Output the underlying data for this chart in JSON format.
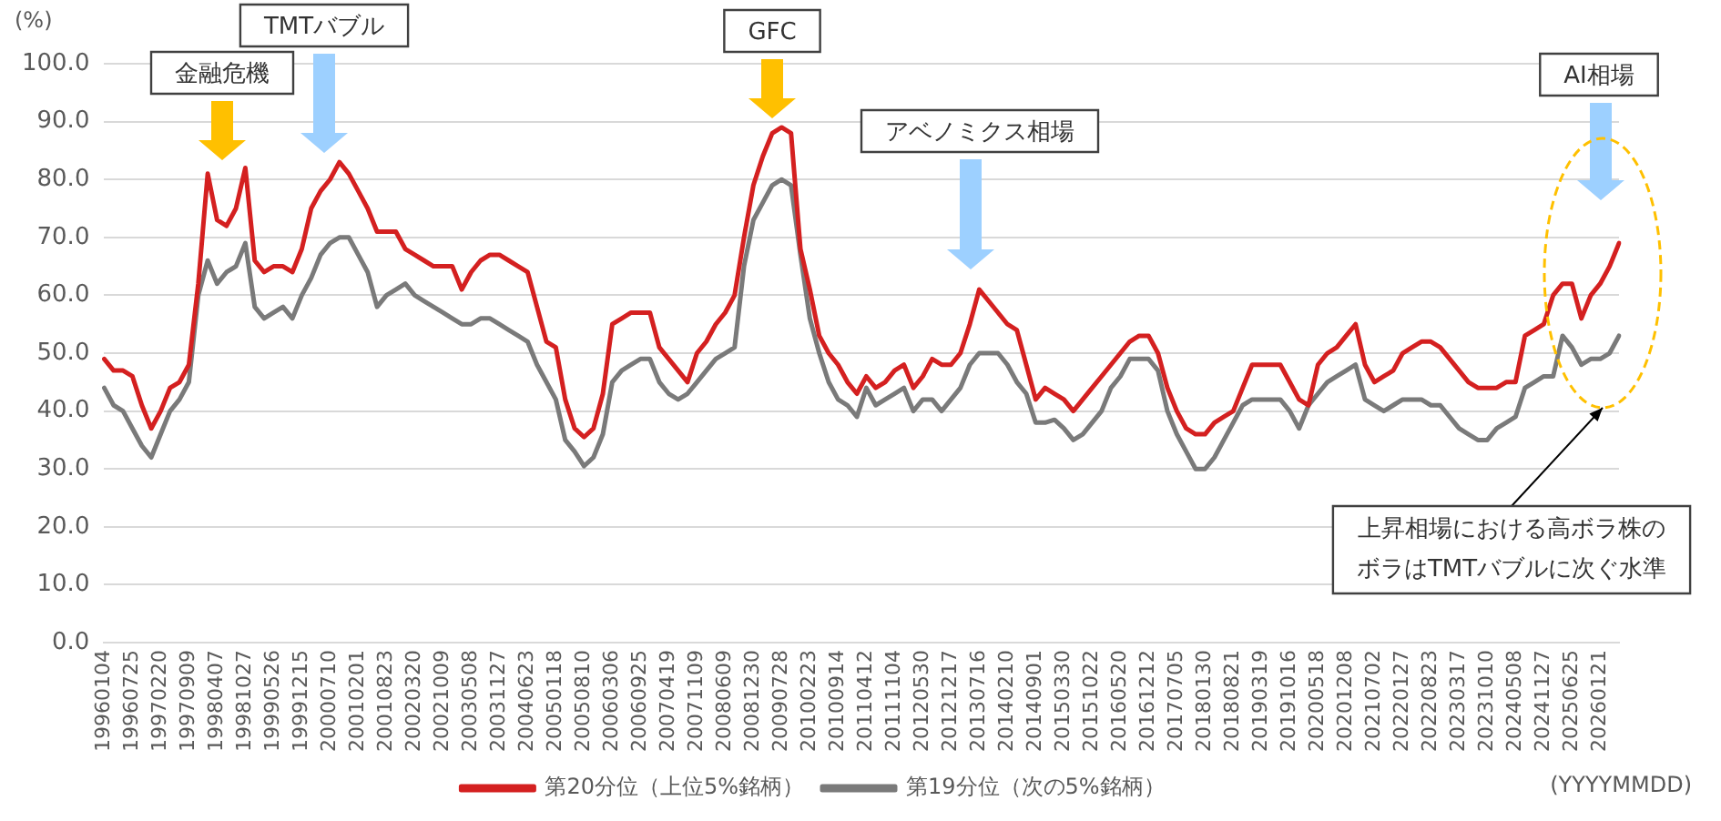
{
  "chart_data": {
    "type": "line",
    "xlabel": "(YYYYMMDD)",
    "ylabel": "(%)",
    "categories": [
      "19960104",
      null,
      null,
      "19960725",
      null,
      null,
      "19970220",
      null,
      null,
      "19970909",
      null,
      null,
      "19980407",
      null,
      null,
      "19981027",
      null,
      null,
      "19990526",
      null,
      null,
      "19991215",
      null,
      null,
      "20000710",
      null,
      null,
      "20010201",
      null,
      null,
      "20010823",
      null,
      null,
      "20020320",
      null,
      null,
      "20021009",
      null,
      null,
      "20030508",
      null,
      null,
      "20031127",
      null,
      null,
      "20040623",
      null,
      null,
      "20050118",
      null,
      null,
      "20050810",
      null,
      null,
      "20060306",
      null,
      null,
      "20060925",
      null,
      null,
      "20070419",
      null,
      null,
      "20071109",
      null,
      null,
      "20080609",
      null,
      null,
      "20081230",
      null,
      null,
      "20090728",
      null,
      null,
      "20100223",
      null,
      null,
      "20100914",
      null,
      null,
      "20110412",
      null,
      null,
      "20111104",
      null,
      null,
      "20120530",
      null,
      null,
      "20121217",
      null,
      null,
      "20130716",
      null,
      null,
      "20140210",
      null,
      null,
      "20140901",
      null,
      null,
      "20150330",
      null,
      null,
      "20151022",
      null,
      null,
      "20160520",
      null,
      null,
      "20161212",
      null,
      null,
      "20170705",
      null,
      null,
      "20180130",
      null,
      null,
      "20180821",
      null,
      null,
      "20190319",
      null,
      null,
      "20191016",
      null,
      null,
      "20200518",
      null,
      null,
      "20201208",
      null,
      null,
      "20210702",
      null,
      null,
      "20220127",
      null,
      null,
      "20220823",
      null,
      null,
      "20230317",
      null,
      null,
      "20231010",
      null,
      null,
      "20240508",
      null,
      null,
      "20241127",
      null,
      null,
      "20250625",
      null,
      null,
      "20260121",
      null,
      null
    ],
    "series": [
      {
        "name": "第20分位（上位5%銘柄）",
        "color": "#d42020",
        "values": [
          49,
          47,
          47,
          46,
          41,
          37,
          40,
          44,
          45,
          48,
          62,
          81,
          73,
          72,
          75,
          82,
          66,
          64,
          65,
          65,
          64,
          68,
          75,
          78,
          80,
          83,
          81,
          78,
          75,
          71,
          71,
          71,
          68,
          67,
          66,
          65,
          65,
          65,
          61,
          64,
          66,
          67,
          67,
          66,
          65,
          64,
          58,
          52,
          51,
          42,
          37,
          35.5,
          37,
          43,
          55,
          56,
          57,
          57,
          57,
          51,
          49,
          47,
          45,
          50,
          52,
          55,
          57,
          60,
          70,
          79,
          84,
          88,
          89,
          88,
          68,
          61,
          53,
          50,
          48,
          45,
          43,
          46,
          44,
          45,
          47,
          48,
          44,
          46,
          49,
          48,
          48,
          50,
          55,
          61,
          59,
          57,
          55,
          54,
          48,
          42,
          44,
          43,
          42,
          40,
          42,
          44,
          46,
          48,
          50,
          52,
          53,
          53,
          50,
          44,
          40,
          37,
          36,
          36,
          38,
          39,
          40,
          44,
          48,
          48,
          48,
          48,
          45,
          42,
          41,
          48,
          50,
          51,
          53,
          55,
          48,
          45,
          46,
          47,
          50,
          51,
          52,
          52,
          51,
          49,
          47,
          45,
          44,
          44,
          44,
          45,
          45,
          53,
          54,
          55,
          60,
          62,
          62,
          56,
          60,
          62,
          65,
          69
        ]
      },
      {
        "name": "第19分位（次の5%銘柄）",
        "color": "#7a7a7a",
        "values": [
          44,
          41,
          40,
          37,
          34,
          32,
          36,
          40,
          42,
          45,
          60,
          66,
          62,
          64,
          65,
          69,
          58,
          56,
          57,
          58,
          56,
          60,
          63,
          67,
          69,
          70,
          70,
          67,
          64,
          58,
          60,
          61,
          62,
          60,
          59,
          58,
          57,
          56,
          55,
          55,
          56,
          56,
          55,
          54,
          53,
          52,
          48,
          45,
          42,
          35,
          33,
          30.5,
          32,
          36,
          45,
          47,
          48,
          49,
          49,
          45,
          43,
          42,
          43,
          45,
          47,
          49,
          50,
          51,
          65,
          73,
          76,
          79,
          80,
          79,
          67,
          56,
          50,
          45,
          42,
          41,
          39,
          44,
          41,
          42,
          43,
          44,
          40,
          42,
          42,
          40,
          42,
          44,
          48,
          50,
          50,
          50,
          48,
          45,
          43,
          38,
          38,
          38.5,
          37,
          35,
          36,
          38,
          40,
          44,
          46,
          49,
          49,
          49,
          47,
          40,
          36,
          33,
          30,
          30,
          32,
          35,
          38,
          41,
          42,
          42,
          42,
          42,
          40,
          37,
          41,
          43,
          45,
          46,
          47,
          48,
          42,
          41,
          40,
          41,
          42,
          42,
          42,
          41,
          41,
          39,
          37,
          36,
          35,
          35,
          37,
          38,
          39,
          44,
          45,
          46,
          46,
          53,
          51,
          48,
          49,
          49,
          50,
          53
        ]
      }
    ],
    "ylim": [
      0,
      100
    ],
    "yticks": [
      {
        "value": 0,
        "label": "0.0"
      },
      {
        "value": 10,
        "label": "10.0"
      },
      {
        "value": 20,
        "label": "20.0"
      },
      {
        "value": 30,
        "label": "30.0"
      },
      {
        "value": 40,
        "label": "40.0"
      },
      {
        "value": 50,
        "label": "50.0"
      },
      {
        "value": 60,
        "label": "60.0"
      },
      {
        "value": 70,
        "label": "70.0"
      },
      {
        "value": 80,
        "label": "80.0"
      },
      {
        "value": 90,
        "label": "90.0"
      },
      {
        "value": 100,
        "label": "100.0"
      }
    ],
    "grid": "y",
    "legend": "bottom",
    "marker": "none",
    "line_style": "solid",
    "annotations": [
      "金融危機",
      "TMTバブル",
      "GFC",
      "アベノミクス相場",
      "AI相場",
      "上昇相場における高ボラ株のボラはTMTバブルに次ぐ水準"
    ]
  }
}
